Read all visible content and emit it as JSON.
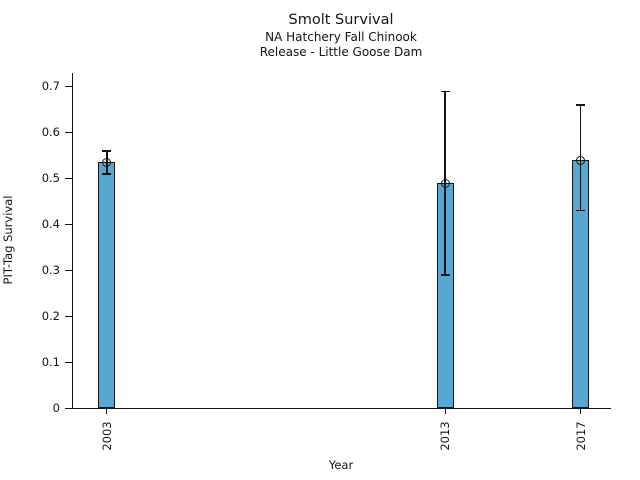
{
  "chart_data": {
    "type": "bar",
    "title": "Smolt Survival",
    "subtitle_line1": "NA Hatchery Fall Chinook",
    "subtitle_line2": "Release - Little Goose Dam",
    "xlabel": "Year",
    "ylabel": "PIT-Tag Survival",
    "categories": [
      2003,
      2013,
      2017
    ],
    "values": [
      0.535,
      0.49,
      0.54
    ],
    "error_low": [
      0.51,
      0.29,
      0.43
    ],
    "error_high": [
      0.56,
      0.69,
      0.66
    ],
    "yticks": [
      0,
      0.1,
      0.2,
      0.3,
      0.4,
      0.5,
      0.6,
      0.7
    ],
    "ylim": [
      0,
      0.73
    ],
    "xlim": [
      2001.97,
      2017.87
    ],
    "bar_width_years": 0.5,
    "bar_fill_color": "#56A8D3",
    "bar_edge_color": "#141414",
    "error_bar_color": "#141414",
    "marker": "open-circle",
    "grid": false,
    "legend": null
  }
}
